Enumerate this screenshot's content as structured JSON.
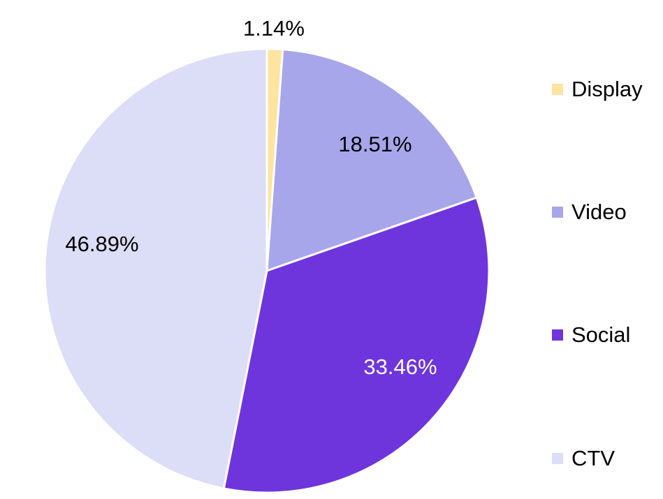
{
  "chart_data": {
    "type": "pie",
    "start_angle_deg": 0,
    "direction": "clockwise",
    "slices": [
      {
        "label": "Display",
        "value": 1.14,
        "display": "1.14%",
        "color": "#fde4a0",
        "label_color": "#000000"
      },
      {
        "label": "Video",
        "value": 18.51,
        "display": "18.51%",
        "color": "#a8a6ea",
        "label_color": "#000000"
      },
      {
        "label": "Social",
        "value": 33.46,
        "display": "33.46%",
        "color": "#6f35dc",
        "label_color": "#ffffff"
      },
      {
        "label": "CTV",
        "value": 46.89,
        "display": "46.89%",
        "color": "#dcddf7",
        "label_color": "#000000"
      }
    ],
    "legend": {
      "position": "right"
    }
  }
}
